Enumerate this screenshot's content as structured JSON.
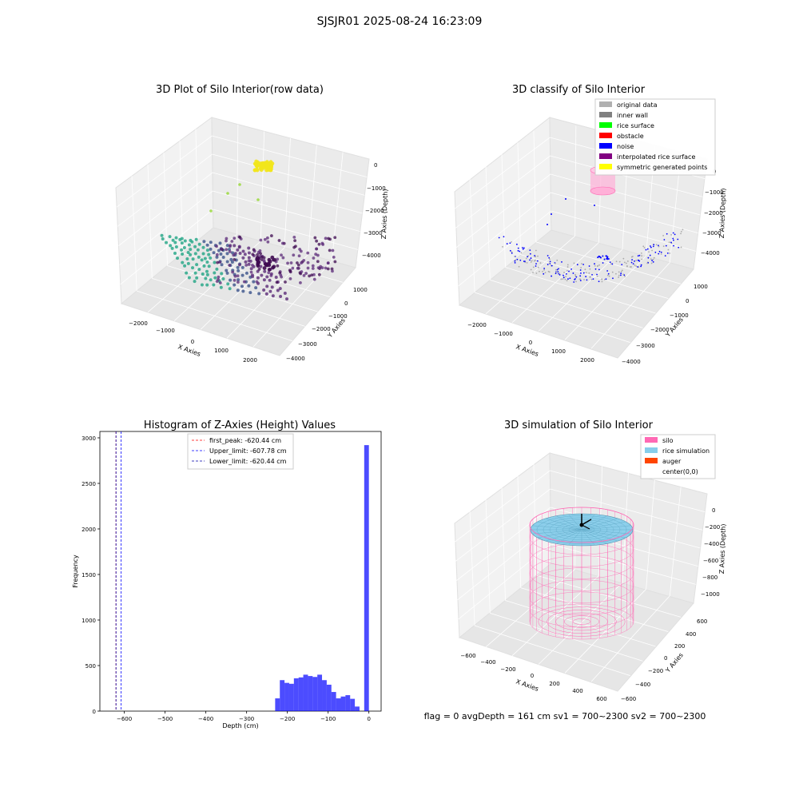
{
  "figure": {
    "title": "SJSJR01 2025-08-24 16:23:09",
    "status_text": "flag = 0     avgDepth = 161 cm  sv1 = 700~2300  sv2 = 700~2300"
  },
  "chart_data": [
    {
      "type": "scatter",
      "title": "3D Plot of Silo Interior(row data)",
      "xlabel": "X Axies",
      "ylabel": "Y Axies",
      "zlabel": "Z Axies (Depth)",
      "xticks": [
        "−2000",
        "−1000",
        "0",
        "1000",
        "2000"
      ],
      "yticks": [
        "1000",
        "0",
        "−1000",
        "−2000",
        "−3000",
        "−4000"
      ],
      "zticks": [
        "0",
        "−1000",
        "−2000",
        "−3000",
        "−4000"
      ],
      "colors": {
        "top_cluster": "#f2e51c",
        "mid": "#9ad93c",
        "teal": "#21a585",
        "blue": "#3b528b",
        "purple": "#5b2a78",
        "dark": "#3e0a50"
      }
    },
    {
      "type": "scatter",
      "title": "3D classify of Silo Interior",
      "xlabel": "X Axies",
      "ylabel": "Y Axies",
      "zlabel": "Z Axies (Depth)",
      "xticks": [
        "−2000",
        "−1000",
        "0",
        "1000",
        "2000"
      ],
      "yticks": [
        "1000",
        "0",
        "−1000",
        "−2000",
        "−3000",
        "−4000"
      ],
      "zticks": [
        "0",
        "−1000",
        "−2000",
        "−3000",
        "−4000"
      ],
      "legend": [
        {
          "label": "original data",
          "color": "#b0b0b0"
        },
        {
          "label": "inner wall",
          "color": "#808080"
        },
        {
          "label": "rice surface",
          "color": "#00ff00"
        },
        {
          "label": "obstacle",
          "color": "#ff0000"
        },
        {
          "label": "noise",
          "color": "#0000ff"
        },
        {
          "label": "interpolated rice surface",
          "color": "#800080"
        },
        {
          "label": "symmetric generated points",
          "color": "#ffff00"
        }
      ],
      "legend_position": "top-right"
    },
    {
      "type": "bar",
      "title": "Histogram of Z-Axies (Height) Values",
      "xlabel": "Depth (cm)",
      "ylabel": "Frequency",
      "xlim": [
        -660,
        30
      ],
      "ylim": [
        0,
        3070
      ],
      "xticks": [
        -600,
        -500,
        -400,
        -300,
        -200,
        -100,
        0
      ],
      "xtick_labels": [
        "−600",
        "−500",
        "−400",
        "−300",
        "−200",
        "−100",
        "0"
      ],
      "yticks": [
        0,
        500,
        1000,
        1500,
        2000,
        2500,
        3000
      ],
      "bin_width": 11.5,
      "bins_start": [
        -230,
        -218.5,
        -207,
        -195.5,
        -184,
        -172.5,
        -161,
        -149.5,
        -138,
        -126.5,
        -115,
        -103.5,
        -92,
        -80.5,
        -69,
        -57.5,
        -46,
        -34.5,
        -23,
        -11.5
      ],
      "counts": [
        140,
        340,
        310,
        300,
        360,
        370,
        400,
        385,
        375,
        400,
        340,
        290,
        210,
        140,
        160,
        175,
        135,
        50,
        0,
        2920
      ],
      "bar_color": "#0000ff",
      "vlines": [
        {
          "x": -620.44,
          "color": "#ff0000",
          "label": "first_peak: -620.44 cm"
        },
        {
          "x": -607.78,
          "color": "#0000ff",
          "label": "Upper_limit: -607.78 cm"
        },
        {
          "x": -620.44,
          "color": "#0000aa",
          "label": "Lower_limit: -620.44 cm"
        }
      ],
      "legend_position": "top-center"
    },
    {
      "type": "area",
      "title": "3D simulation of Silo Interior",
      "xlabel": "X Axies",
      "ylabel": "Y Axies",
      "zlabel": "Z Axies (Depth)",
      "xticks": [
        "−600",
        "−400",
        "−200",
        "0",
        "200",
        "400",
        "600"
      ],
      "yticks": [
        "600",
        "400",
        "200",
        "0",
        "−200",
        "−400",
        "−600"
      ],
      "zticks": [
        "0",
        "−200",
        "−400",
        "−600",
        "−800",
        "−1000"
      ],
      "legend": [
        {
          "label": "silo",
          "color": "#ff69b4"
        },
        {
          "label": "rice simulation",
          "color": "#87ceeb"
        },
        {
          "label": "auger",
          "color": "#ff4500"
        },
        {
          "label": "center(0,0)",
          "color": "#ffffff"
        }
      ],
      "legend_position": "top-right"
    }
  ]
}
